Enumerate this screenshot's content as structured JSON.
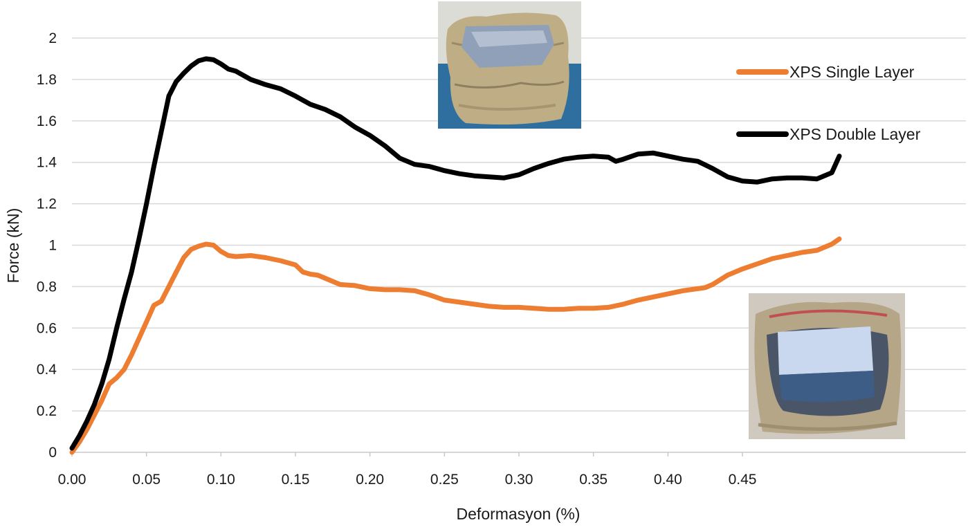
{
  "chart_data": {
    "type": "line",
    "xlabel": "Deformasyon (%)",
    "ylabel": "Force (kN)",
    "xlim": [
      0,
      0.6
    ],
    "ylim": [
      0,
      2
    ],
    "x_ticks": [
      "0.00",
      "0.05",
      "0.10",
      "0.15",
      "0.20",
      "0.25",
      "0.30",
      "0.35",
      "0.40",
      "0.45"
    ],
    "y_ticks": [
      "0",
      "0.2",
      "0.4",
      "0.6",
      "0.8",
      "1",
      "1.2",
      "1.4",
      "1.6",
      "1.8",
      "2"
    ],
    "grid": "horizontal",
    "legend_position": "right",
    "series": [
      {
        "name": "XPS Single Layer",
        "color": "#ED7D31",
        "x": [
          0.0,
          0.005,
          0.01,
          0.015,
          0.02,
          0.025,
          0.03,
          0.035,
          0.04,
          0.045,
          0.05,
          0.055,
          0.06,
          0.065,
          0.07,
          0.075,
          0.08,
          0.085,
          0.09,
          0.095,
          0.1,
          0.105,
          0.11,
          0.12,
          0.13,
          0.14,
          0.15,
          0.155,
          0.16,
          0.165,
          0.17,
          0.18,
          0.19,
          0.2,
          0.21,
          0.22,
          0.23,
          0.24,
          0.25,
          0.26,
          0.27,
          0.28,
          0.29,
          0.3,
          0.31,
          0.32,
          0.33,
          0.34,
          0.35,
          0.36,
          0.37,
          0.38,
          0.39,
          0.4,
          0.41,
          0.42,
          0.425,
          0.43,
          0.44,
          0.45,
          0.46,
          0.47,
          0.48,
          0.49,
          0.5,
          0.51,
          0.515
        ],
        "y": [
          0.0,
          0.05,
          0.11,
          0.18,
          0.25,
          0.33,
          0.36,
          0.4,
          0.47,
          0.55,
          0.63,
          0.71,
          0.73,
          0.8,
          0.87,
          0.94,
          0.98,
          0.995,
          1.005,
          1.0,
          0.97,
          0.95,
          0.945,
          0.95,
          0.94,
          0.925,
          0.905,
          0.87,
          0.86,
          0.855,
          0.84,
          0.81,
          0.805,
          0.79,
          0.785,
          0.785,
          0.78,
          0.76,
          0.735,
          0.725,
          0.715,
          0.705,
          0.7,
          0.7,
          0.695,
          0.69,
          0.69,
          0.695,
          0.695,
          0.7,
          0.715,
          0.735,
          0.75,
          0.765,
          0.78,
          0.79,
          0.795,
          0.81,
          0.855,
          0.885,
          0.91,
          0.935,
          0.95,
          0.965,
          0.975,
          1.005,
          1.03
        ]
      },
      {
        "name": "XPS Double Layer",
        "color": "#000000",
        "x": [
          0.0,
          0.005,
          0.01,
          0.015,
          0.02,
          0.025,
          0.03,
          0.035,
          0.04,
          0.045,
          0.05,
          0.055,
          0.06,
          0.065,
          0.07,
          0.075,
          0.08,
          0.085,
          0.09,
          0.095,
          0.1,
          0.105,
          0.11,
          0.12,
          0.13,
          0.14,
          0.15,
          0.16,
          0.17,
          0.18,
          0.19,
          0.2,
          0.21,
          0.22,
          0.23,
          0.24,
          0.25,
          0.26,
          0.27,
          0.28,
          0.29,
          0.3,
          0.31,
          0.32,
          0.33,
          0.34,
          0.35,
          0.36,
          0.365,
          0.37,
          0.38,
          0.39,
          0.4,
          0.41,
          0.42,
          0.43,
          0.44,
          0.45,
          0.46,
          0.47,
          0.48,
          0.49,
          0.5,
          0.51,
          0.515
        ],
        "y": [
          0.02,
          0.08,
          0.15,
          0.23,
          0.33,
          0.45,
          0.6,
          0.74,
          0.87,
          1.03,
          1.2,
          1.38,
          1.55,
          1.72,
          1.79,
          1.83,
          1.865,
          1.89,
          1.9,
          1.895,
          1.875,
          1.85,
          1.84,
          1.8,
          1.775,
          1.755,
          1.72,
          1.68,
          1.655,
          1.62,
          1.57,
          1.53,
          1.48,
          1.42,
          1.39,
          1.38,
          1.36,
          1.345,
          1.335,
          1.33,
          1.325,
          1.34,
          1.37,
          1.395,
          1.415,
          1.425,
          1.43,
          1.425,
          1.405,
          1.415,
          1.44,
          1.445,
          1.43,
          1.415,
          1.405,
          1.37,
          1.33,
          1.31,
          1.305,
          1.32,
          1.325,
          1.325,
          1.32,
          1.35,
          1.43
        ]
      }
    ]
  },
  "photos": {
    "top": {
      "name": "XPS single layer specimen photo"
    },
    "bottom": {
      "name": "XPS double layer specimen photo"
    }
  }
}
